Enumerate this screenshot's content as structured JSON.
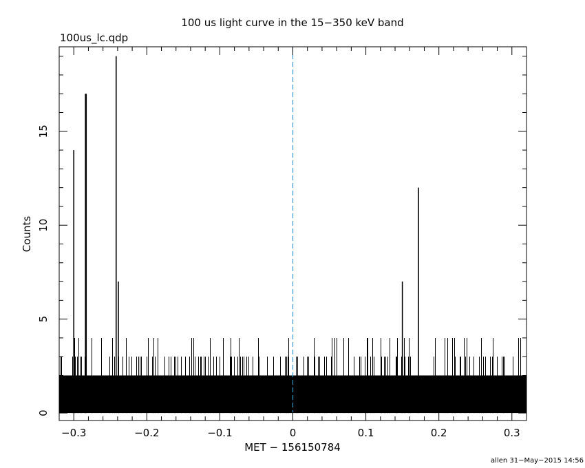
{
  "chart_data": {
    "type": "line",
    "title": "100 us light curve in the 15−350 keV band",
    "subtitle": "100us_lc.qdp",
    "xlabel": "MET − 156150784",
    "ylabel": "Counts",
    "footer": "allen 31−May−2015 14:56",
    "xlim": [
      -0.32,
      0.32
    ],
    "ylim": [
      -0.4,
      19.5
    ],
    "xticks": [
      -0.3,
      -0.2,
      -0.1,
      0,
      0.1,
      0.2,
      0.3
    ],
    "xtick_labels": [
      "−0.3",
      "−0.2",
      "−0.1",
      "0",
      "0.1",
      "0.2",
      "0.3"
    ],
    "yticks": [
      0,
      5,
      10,
      15
    ],
    "ytick_labels": [
      "0",
      "5",
      "10",
      "15"
    ],
    "bin_width": 0.0001,
    "reference_line_x": 0,
    "reference_line_color": "#3399cc",
    "line_color": "#000000",
    "grid": false,
    "series": [
      {
        "values": [
          {
            "x": -0.3,
            "y": 14
          },
          {
            "x": -0.284,
            "y": 17
          },
          {
            "x": -0.283,
            "y": 17
          },
          {
            "x": -0.242,
            "y": 19
          },
          {
            "x": -0.239,
            "y": 7
          },
          {
            "x": 0.15,
            "y": 7
          },
          {
            "x": 0.172,
            "y": 12
          }
        ]
      }
    ]
  }
}
